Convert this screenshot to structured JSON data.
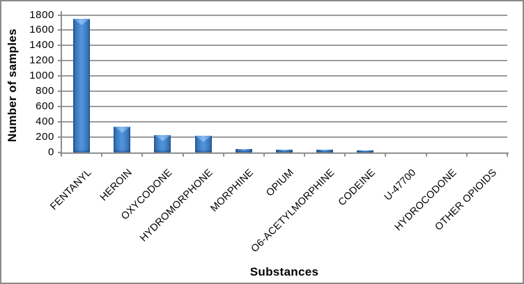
{
  "chart_data": {
    "type": "bar",
    "title": "",
    "xlabel": "Substances",
    "ylabel": "Number of samples",
    "categories": [
      "FENTANYL",
      "HEROIN",
      "OXYCODONE",
      "HYDROMORPHONE",
      "MORPHINE",
      "OPIUM",
      "O6-ACETYLMORPHINE",
      "CODEINE",
      "U-47700",
      "HYDROCODONE",
      "OTHER OPIOIDS"
    ],
    "values": [
      1750,
      340,
      230,
      220,
      50,
      40,
      40,
      30,
      0,
      0,
      0
    ],
    "ylim": [
      0,
      1800
    ],
    "yticks": [
      0,
      200,
      400,
      600,
      800,
      1000,
      1200,
      1400,
      1600,
      1800
    ],
    "grid": true,
    "legend": false,
    "x_label_rotation_deg": -45,
    "colors": {
      "bar_body_center": "#4f93dd",
      "bar_body_mid": "#3873b4",
      "bar_body_edge": "#255a96",
      "bar_bevel_light": "#8abdf0",
      "bar_bevel_mid": "#4c8cd0",
      "gridline": "#9b9b9b",
      "axis": "#8f8f8f",
      "border": "#8a8a8a",
      "text": "#000000",
      "background": "#ffffff"
    }
  }
}
